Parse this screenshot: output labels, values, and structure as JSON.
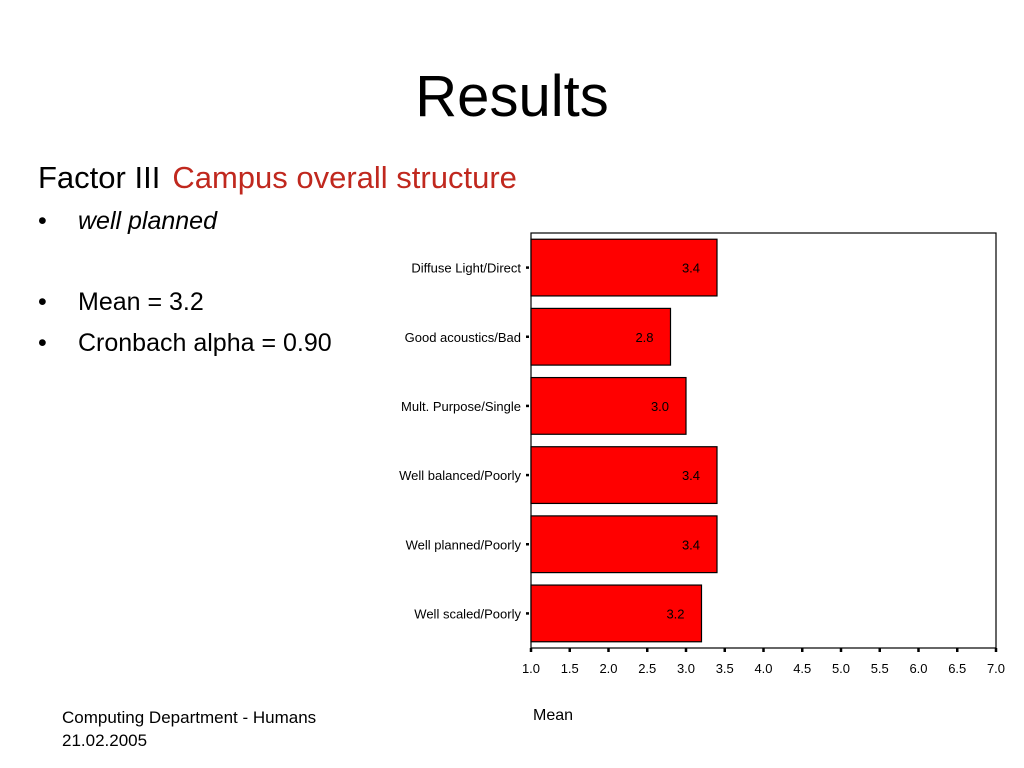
{
  "slide": {
    "title": "Results",
    "factor_label": "Factor III",
    "factor_name": "Campus overall structure",
    "bullets": [
      {
        "text": "well planned",
        "italic": true
      },
      {
        "text": "Mean =  3.2",
        "italic": false
      },
      {
        "text": "Cronbach alpha = 0.90",
        "italic": false
      }
    ],
    "footer": {
      "line1": "Computing Department - Humans",
      "line2": "21.02.2005"
    }
  },
  "colors": {
    "bar_fill": "#ff0000",
    "bar_stroke": "#000000",
    "accent_text": "#c0281e"
  },
  "chart_data": {
    "type": "bar",
    "orientation": "horizontal",
    "categories": [
      "Diffuse Light/Direct",
      "Good acoustics/Bad",
      "Mult. Purpose/Single",
      "Well balanced/Poorly",
      "Well planned/Poorly",
      "Well scaled/Poorly"
    ],
    "values": [
      3.4,
      2.8,
      3.0,
      3.4,
      3.4,
      3.2
    ],
    "data_labels": [
      "3.4",
      "2.8",
      "3.0",
      "3.4",
      "3.4",
      "3.2"
    ],
    "xlabel": "Mean",
    "xlim": [
      1.0,
      7.0
    ],
    "x_ticks": [
      "1.0",
      "1.5",
      "2.0",
      "2.5",
      "3.0",
      "3.5",
      "4.0",
      "4.5",
      "5.0",
      "5.5",
      "6.0",
      "6.5",
      "7.0"
    ],
    "grid": false
  }
}
